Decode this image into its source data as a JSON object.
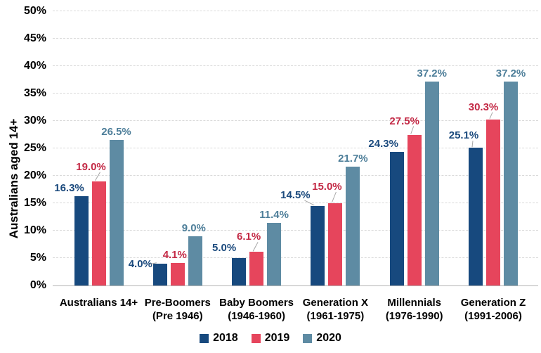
{
  "chart_data": {
    "type": "bar",
    "title": "",
    "ylabel": "Australians aged 14+",
    "xlabel": "",
    "ylim": [
      0,
      50
    ],
    "ytick_values": [
      0,
      5,
      10,
      15,
      20,
      25,
      30,
      35,
      40,
      45,
      50
    ],
    "ytick_suffix": "%",
    "grid": "horizontal-dashed",
    "value_labels_shown": true,
    "value_label_suffix": "%",
    "legend_position": "bottom-center",
    "categories": [
      {
        "label": "Australians 14+",
        "sub": ""
      },
      {
        "label": "Pre-Boomers",
        "sub": "(Pre 1946)"
      },
      {
        "label": "Baby Boomers",
        "sub": "(1946-1960)"
      },
      {
        "label": "Generation X",
        "sub": "(1961-1975)"
      },
      {
        "label": "Millennials",
        "sub": "(1976-1990)"
      },
      {
        "label": "Generation Z",
        "sub": "(1991-2006)"
      }
    ],
    "series": [
      {
        "name": "2018",
        "color": "#17497e",
        "label_color": "#1b4a7d",
        "values": [
          16.3,
          4.0,
          5.0,
          14.5,
          24.3,
          25.1
        ]
      },
      {
        "name": "2019",
        "color": "#e6455c",
        "label_color": "#c32945",
        "values": [
          19.0,
          4.1,
          6.1,
          15.0,
          27.5,
          30.3
        ]
      },
      {
        "name": "2020",
        "color": "#5e8ba3",
        "label_color": "#4d7e99",
        "values": [
          26.5,
          9.0,
          11.4,
          21.7,
          37.2,
          37.2
        ]
      }
    ],
    "colors": {
      "gridline": "#d9d9d9",
      "axis_line": "#b3b3b3",
      "leader_line": "#a6a6a6",
      "tick_text": "#000000"
    }
  }
}
